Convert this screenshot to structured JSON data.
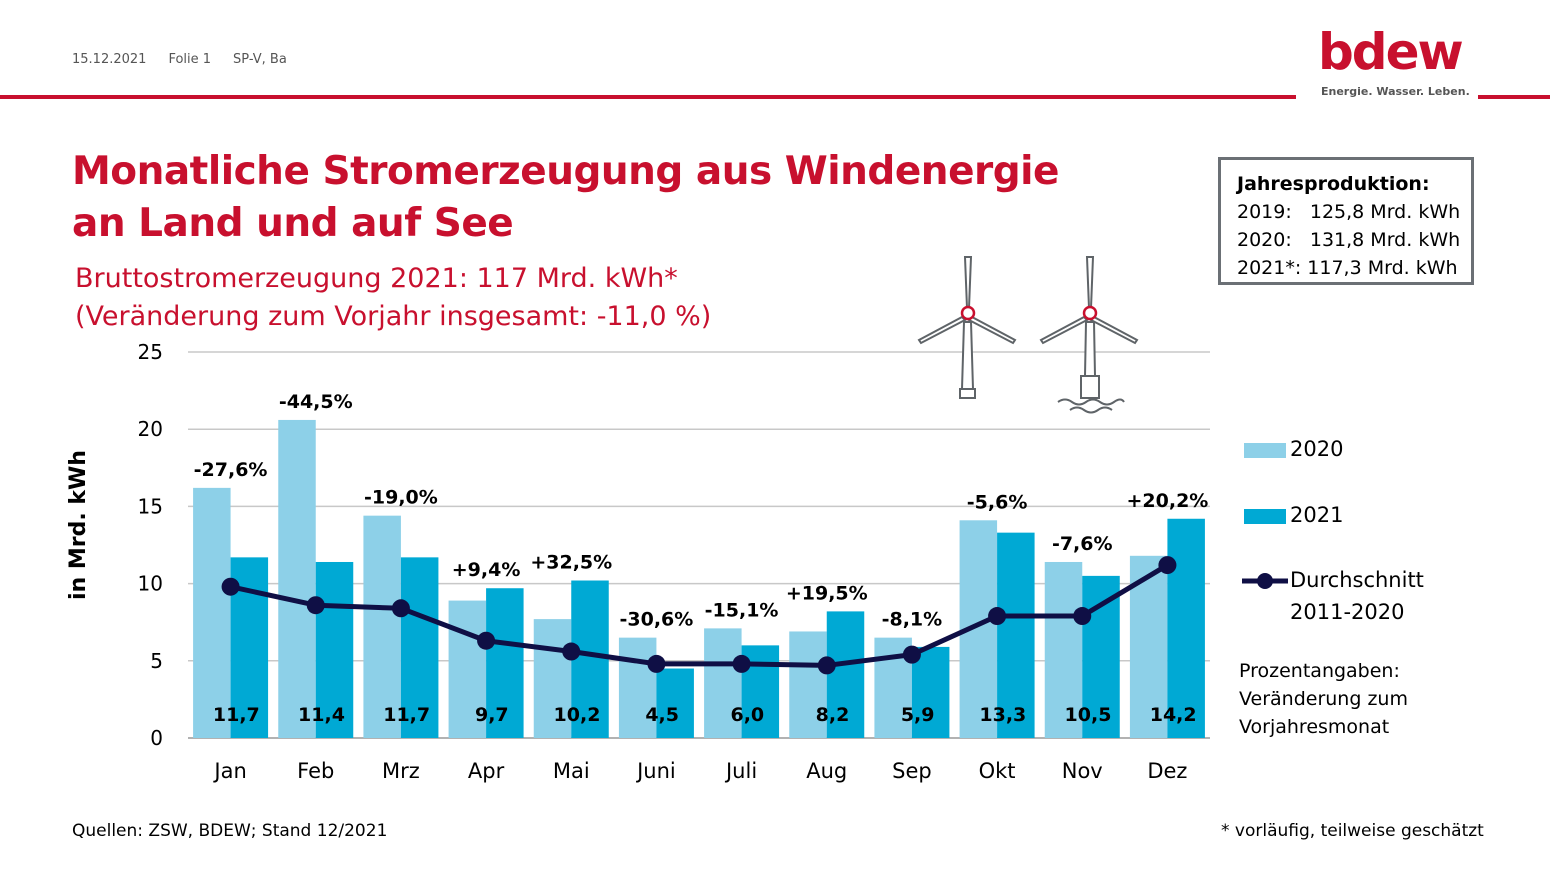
{
  "header": {
    "date": "15.12.2021",
    "slide": "Folie 1",
    "author": "SP-V, Ba"
  },
  "logo": {
    "word": "bdew",
    "tagline": "Energie. Wasser. Leben."
  },
  "title_lines": [
    "Monatliche Stromerzeugung aus Windenergie",
    "an Land und auf See"
  ],
  "subtitle_lines": [
    "Bruttostromerzeugung 2021: 117 Mrd. kWh*",
    "(Veränderung zum Vorjahr insgesamt: -11,0 %)"
  ],
  "infobox": {
    "heading": "Jahresproduktion:",
    "rows": [
      "2019:   125,8 Mrd. kWh",
      "2020:   131,8 Mrd. kWh",
      "2021*: 117,3 Mrd. kWh"
    ]
  },
  "note_lines": [
    "Prozentangaben:",
    "Veränderung zum",
    "Vorjahresmonat"
  ],
  "footer": {
    "sources": "Quellen: ZSW, BDEW; Stand 12/2021",
    "footnote": "* vorläufig, teilweise geschätzt"
  },
  "colors": {
    "brand": "#c8102e",
    "bar2020": "#8dd0e8",
    "bar2021": "#00a9d4",
    "line": "#0f0f45",
    "grid": "#c8c8c8"
  },
  "icons": [
    "wind-turbine-onshore-icon",
    "wind-turbine-offshore-icon"
  ],
  "chart_data": {
    "type": "bar",
    "ylabel": "in Mrd. kWh",
    "ylim": [
      0,
      25
    ],
    "yticks": [
      0,
      5,
      10,
      15,
      20,
      25
    ],
    "grid": true,
    "legend_position": "right",
    "categories": [
      "Jan",
      "Feb",
      "Mrz",
      "Apr",
      "Mai",
      "Juni",
      "Juli",
      "Aug",
      "Sep",
      "Okt",
      "Nov",
      "Dez"
    ],
    "series": [
      {
        "name": "2020",
        "type": "bar",
        "values": [
          16.2,
          20.6,
          14.4,
          8.9,
          7.7,
          6.5,
          7.1,
          6.9,
          6.5,
          14.1,
          11.4,
          11.8
        ]
      },
      {
        "name": "2021",
        "type": "bar",
        "values": [
          11.7,
          11.4,
          11.7,
          9.7,
          10.2,
          4.5,
          6.0,
          8.2,
          5.9,
          13.3,
          10.5,
          14.2
        ],
        "value_labels": [
          "11,7",
          "11,4",
          "11,7",
          "9,7",
          "10,2",
          "4,5",
          "6,0",
          "8,2",
          "5,9",
          "13,3",
          "10,5",
          "14,2"
        ]
      },
      {
        "name": "Durchschnitt 2011-2020",
        "type": "line",
        "values": [
          9.8,
          8.6,
          8.4,
          6.3,
          5.6,
          4.8,
          4.8,
          4.7,
          5.4,
          7.9,
          7.9,
          11.2
        ]
      }
    ],
    "legend_labels": [
      "2020",
      "2021",
      "Durchschnitt",
      "2011-2020"
    ],
    "change_labels": [
      "-27,6%",
      "-44,5%",
      "-19,0%",
      "+9,4%",
      "+32,5%",
      "-30,6%",
      "-15,1%",
      "+19,5%",
      "-8,1%",
      "-5,6%",
      "-7,6%",
      "+20,2%"
    ]
  }
}
